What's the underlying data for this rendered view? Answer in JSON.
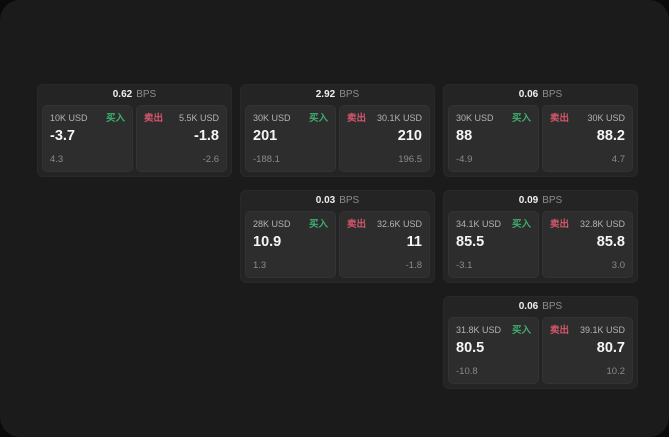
{
  "colors": {
    "background": "#1b1b1b",
    "card_background": "#242424",
    "panel_background": "#2d2d2d",
    "buy_green": "#3dae6e",
    "sell_red": "#d2566b",
    "primary_text": "#f5f5f5",
    "secondary_text": "#8d8d8d"
  },
  "cards": [
    {
      "bps": "0.62",
      "bps_unit": "BPS",
      "buy": {
        "amount": "10K USD",
        "side": "买入",
        "price": "-3.7",
        "delta": "4.3"
      },
      "sell": {
        "side": "卖出",
        "amount": "5.5K USD",
        "price": "-1.8",
        "delta": "-2.6"
      }
    },
    {
      "bps": "2.92",
      "bps_unit": "BPS",
      "buy": {
        "amount": "30K USD",
        "side": "买入",
        "price": "201",
        "delta": "-188.1"
      },
      "sell": {
        "side": "卖出",
        "amount": "30.1K USD",
        "price": "210",
        "delta": "196.5"
      }
    },
    {
      "bps": "0.06",
      "bps_unit": "BPS",
      "buy": {
        "amount": "30K USD",
        "side": "买入",
        "price": "88",
        "delta": "-4.9"
      },
      "sell": {
        "side": "卖出",
        "amount": "30K USD",
        "price": "88.2",
        "delta": "4.7"
      }
    },
    {
      "bps": "0.03",
      "bps_unit": "BPS",
      "buy": {
        "amount": "28K USD",
        "side": "买入",
        "price": "10.9",
        "delta": "1.3"
      },
      "sell": {
        "side": "卖出",
        "amount": "32.6K USD",
        "price": "11",
        "delta": "-1.8"
      }
    },
    {
      "bps": "0.09",
      "bps_unit": "BPS",
      "buy": {
        "amount": "34.1K USD",
        "side": "买入",
        "price": "85.5",
        "delta": "-3.1"
      },
      "sell": {
        "side": "卖出",
        "amount": "32.8K USD",
        "price": "85.8",
        "delta": "3.0"
      }
    },
    {
      "bps": "0.06",
      "bps_unit": "BPS",
      "buy": {
        "amount": "31.8K USD",
        "side": "买入",
        "price": "80.5",
        "delta": "-10.8"
      },
      "sell": {
        "side": "卖出",
        "amount": "39.1K USD",
        "price": "80.7",
        "delta": "10.2"
      }
    }
  ]
}
